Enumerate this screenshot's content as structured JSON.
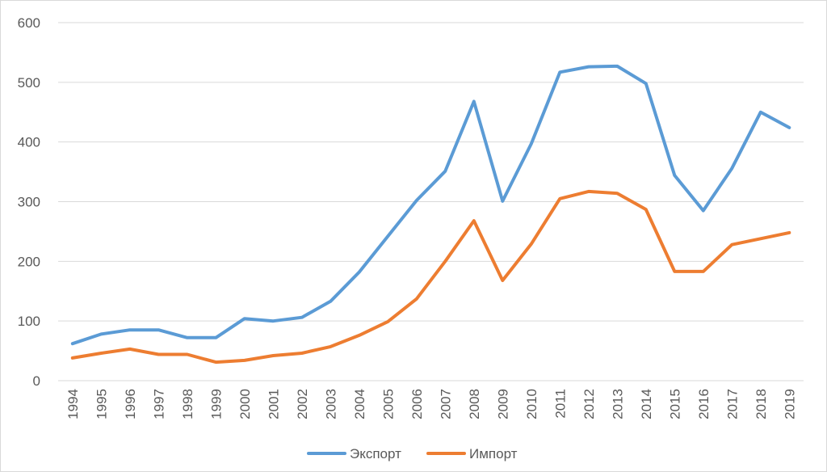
{
  "chart_data": {
    "type": "line",
    "title": "",
    "xlabel": "",
    "ylabel": "",
    "x": [
      "1994",
      "1995",
      "1996",
      "1997",
      "1998",
      "1999",
      "2000",
      "2001",
      "2002",
      "2003",
      "2004",
      "2005",
      "2006",
      "2007",
      "2008",
      "2009",
      "2010",
      "2011",
      "2012",
      "2013",
      "2014",
      "2015",
      "2016",
      "2017",
      "2018",
      "2019"
    ],
    "ylim": [
      0,
      600
    ],
    "yticks": [
      0,
      100,
      200,
      300,
      400,
      500,
      600
    ],
    "grid": true,
    "legend_position": "bottom",
    "series": [
      {
        "name": "Экспорт",
        "color": "#5b9bd5",
        "values": [
          62,
          78,
          85,
          85,
          72,
          72,
          104,
          100,
          106,
          133,
          182,
          242,
          302,
          351,
          468,
          301,
          397,
          517,
          526,
          527,
          498,
          344,
          285,
          356,
          450,
          424
        ]
      },
      {
        "name": "Импорт",
        "color": "#ed7d31",
        "values": [
          38,
          46,
          53,
          44,
          44,
          31,
          34,
          42,
          46,
          57,
          76,
          99,
          137,
          200,
          268,
          168,
          229,
          305,
          317,
          314,
          287,
          183,
          183,
          228,
          238,
          248
        ]
      }
    ]
  }
}
